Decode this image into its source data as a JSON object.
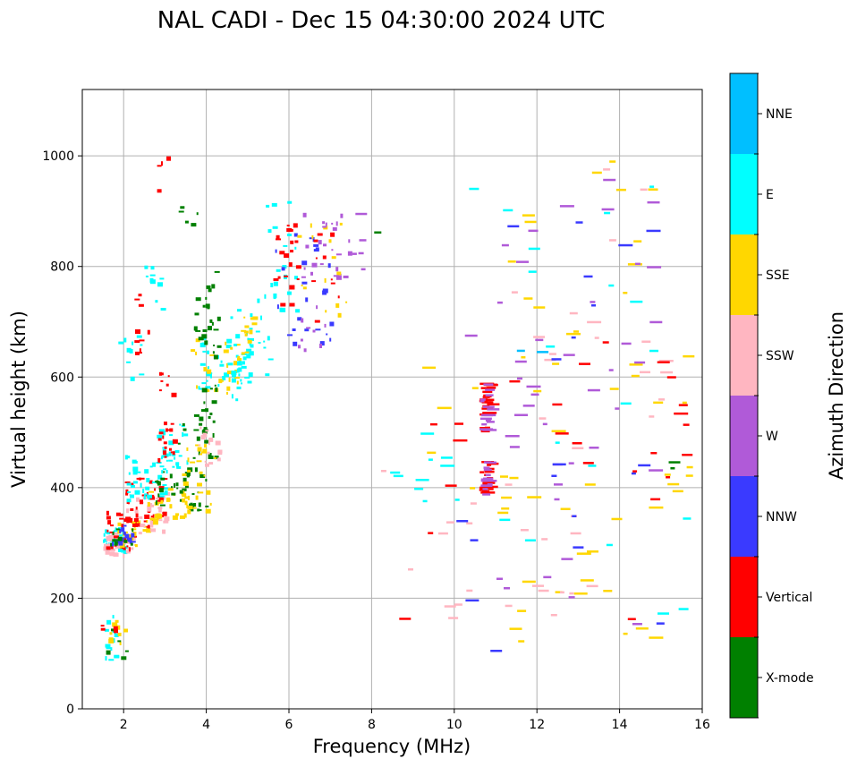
{
  "chart_data": {
    "type": "scatter",
    "title": "NAL CADI - Dec 15 04:30:00 2024 UTC",
    "xlabel": "Frequency (MHz)",
    "ylabel": "Virtual height (km)",
    "xlim": [
      1,
      16
    ],
    "ylim": [
      0,
      1120
    ],
    "xticks": [
      2,
      4,
      6,
      8,
      10,
      12,
      14,
      16
    ],
    "yticks": [
      0,
      200,
      400,
      600,
      800,
      1000
    ],
    "grid": true,
    "colorbar": {
      "label": "Azimuth Direction",
      "categories": [
        {
          "name": "X-mode",
          "color": "#008000"
        },
        {
          "name": "Vertical",
          "color": "#ff0000"
        },
        {
          "name": "NNW",
          "color": "#3a3aff"
        },
        {
          "name": "W",
          "color": "#b05ad8"
        },
        {
          "name": "SSW",
          "color": "#ffb6c1"
        },
        {
          "name": "SSE",
          "color": "#ffd700"
        },
        {
          "name": "E",
          "color": "#00ffff"
        },
        {
          "name": "NNE",
          "color": "#00bfff"
        }
      ]
    },
    "clusters": [
      {
        "category": "E",
        "f": [
          1.5,
          2.0
        ],
        "h": [
          285,
          330
        ],
        "n": 40
      },
      {
        "category": "SSW",
        "f": [
          1.5,
          2.2
        ],
        "h": [
          280,
          320
        ],
        "n": 30
      },
      {
        "category": "Vertical",
        "f": [
          1.5,
          2.4
        ],
        "h": [
          290,
          360
        ],
        "n": 30
      },
      {
        "category": "SSE",
        "f": [
          1.8,
          2.6
        ],
        "h": [
          295,
          345
        ],
        "n": 25
      },
      {
        "category": "NNW",
        "f": [
          1.6,
          2.2
        ],
        "h": [
          300,
          340
        ],
        "n": 15
      },
      {
        "category": "X-mode",
        "f": [
          1.6,
          2.2
        ],
        "h": [
          295,
          340
        ],
        "n": 10
      },
      {
        "category": "Vertical",
        "f": [
          2.0,
          3.0
        ],
        "h": [
          330,
          420
        ],
        "n": 45
      },
      {
        "category": "SSW",
        "f": [
          2.0,
          3.0
        ],
        "h": [
          320,
          400
        ],
        "n": 30
      },
      {
        "category": "E",
        "f": [
          2.0,
          3.0
        ],
        "h": [
          380,
          460
        ],
        "n": 35
      },
      {
        "category": "SSE",
        "f": [
          2.5,
          3.5
        ],
        "h": [
          340,
          400
        ],
        "n": 25
      },
      {
        "category": "X-mode",
        "f": [
          2.7,
          4.0
        ],
        "h": [
          350,
          430
        ],
        "n": 35
      },
      {
        "category": "E",
        "f": [
          2.8,
          3.6
        ],
        "h": [
          430,
          520
        ],
        "n": 30
      },
      {
        "category": "X-mode",
        "f": [
          3.3,
          4.2
        ],
        "h": [
          420,
          560
        ],
        "n": 30
      },
      {
        "category": "SSE",
        "f": [
          3.4,
          4.2
        ],
        "h": [
          360,
          480
        ],
        "n": 30
      },
      {
        "category": "SSW",
        "f": [
          3.8,
          4.3
        ],
        "h": [
          440,
          520
        ],
        "n": 15
      },
      {
        "category": "Vertical",
        "f": [
          2.8,
          3.2
        ],
        "h": [
          450,
          620
        ],
        "n": 25
      },
      {
        "category": "E",
        "f": [
          3.8,
          5.0
        ],
        "h": [
          560,
          680
        ],
        "n": 40
      },
      {
        "category": "SSE",
        "f": [
          3.6,
          4.8
        ],
        "h": [
          570,
          680
        ],
        "n": 25
      },
      {
        "category": "X-mode",
        "f": [
          3.7,
          4.3
        ],
        "h": [
          580,
          800
        ],
        "n": 30
      },
      {
        "category": "E",
        "f": [
          4.5,
          5.6
        ],
        "h": [
          600,
          750
        ],
        "n": 30
      },
      {
        "category": "SSE",
        "f": [
          4.6,
          5.2
        ],
        "h": [
          620,
          720
        ],
        "n": 15
      },
      {
        "category": "E",
        "f": [
          5.4,
          6.2
        ],
        "h": [
          720,
          920
        ],
        "n": 20
      },
      {
        "category": "Vertical",
        "f": [
          5.6,
          6.2
        ],
        "h": [
          720,
          880
        ],
        "n": 20
      },
      {
        "category": "NNW",
        "f": [
          5.6,
          7.0
        ],
        "h": [
          660,
          870
        ],
        "n": 25
      },
      {
        "category": "W",
        "f": [
          6.2,
          7.4
        ],
        "h": [
          640,
          900
        ],
        "n": 25
      },
      {
        "category": "SSE",
        "f": [
          6.2,
          7.4
        ],
        "h": [
          700,
          880
        ],
        "n": 15
      },
      {
        "category": "Vertical",
        "f": [
          6.4,
          7.2
        ],
        "h": [
          700,
          880
        ],
        "n": 10
      },
      {
        "category": "W",
        "f": [
          6.6,
          7.8
        ],
        "h": [
          780,
          930
        ],
        "n": 10
      },
      {
        "category": "E",
        "f": [
          1.8,
          2.4
        ],
        "h": [
          600,
          690
        ],
        "n": 10
      },
      {
        "category": "Vertical",
        "f": [
          2.2,
          2.6
        ],
        "h": [
          640,
          760
        ],
        "n": 10
      },
      {
        "category": "E",
        "f": [
          2.5,
          2.9
        ],
        "h": [
          720,
          810
        ],
        "n": 10
      },
      {
        "category": "X-mode",
        "f": [
          3.2,
          4.0
        ],
        "h": [
          850,
          930
        ],
        "n": 5
      },
      {
        "category": "Vertical",
        "f": [
          2.8,
          3.2
        ],
        "h": [
          920,
          1000
        ],
        "n": 4
      },
      {
        "category": "E",
        "f": [
          1.5,
          1.8
        ],
        "h": [
          90,
          170
        ],
        "n": 15
      },
      {
        "category": "SSE",
        "f": [
          1.5,
          2.0
        ],
        "h": [
          120,
          170
        ],
        "n": 10
      },
      {
        "category": "X-mode",
        "f": [
          1.5,
          2.4
        ],
        "h": [
          90,
          170
        ],
        "n": 6
      },
      {
        "category": "Vertical",
        "f": [
          1.4,
          1.8
        ],
        "h": [
          130,
          170
        ],
        "n": 4
      },
      {
        "category": "Vertical",
        "f": [
          10.6,
          10.8
        ],
        "h": [
          500,
          590
        ],
        "n": 25
      },
      {
        "category": "W",
        "f": [
          10.6,
          10.8
        ],
        "h": [
          500,
          590
        ],
        "n": 15
      },
      {
        "category": "Vertical",
        "f": [
          10.6,
          10.8
        ],
        "h": [
          385,
          450
        ],
        "n": 20
      },
      {
        "category": "W",
        "f": [
          10.6,
          10.8
        ],
        "h": [
          385,
          450
        ],
        "n": 15
      },
      {
        "category": "Vertical",
        "f": [
          15.0,
          15.6
        ],
        "h": [
          420,
          700
        ],
        "n": 6
      },
      {
        "category": "SSE",
        "f": [
          15.0,
          16.0
        ],
        "h": [
          360,
          700
        ],
        "n": 8
      },
      {
        "category": "X-mode",
        "f": [
          15.0,
          15.6
        ],
        "h": [
          430,
          450
        ],
        "n": 2
      },
      {
        "category": "E",
        "f": [
          14.8,
          15.6
        ],
        "h": [
          90,
          440
        ],
        "n": 3
      },
      {
        "category": "SSE",
        "f": [
          11.0,
          15.0
        ],
        "h": [
          100,
          1000
        ],
        "n": 45
      },
      {
        "category": "W",
        "f": [
          11.0,
          15.0
        ],
        "h": [
          150,
          960
        ],
        "n": 40
      },
      {
        "category": "SSW",
        "f": [
          11.0,
          15.0
        ],
        "h": [
          120,
          1020
        ],
        "n": 30
      },
      {
        "category": "E",
        "f": [
          11.0,
          15.0
        ],
        "h": [
          160,
          960
        ],
        "n": 15
      },
      {
        "category": "NNW",
        "f": [
          11.0,
          15.0
        ],
        "h": [
          80,
          990
        ],
        "n": 15
      },
      {
        "category": "Vertical",
        "f": [
          11.0,
          15.0
        ],
        "h": [
          150,
          700
        ],
        "n": 12
      },
      {
        "category": "NNE",
        "f": [
          11.0,
          12.0
        ],
        "h": [
          640,
          650
        ],
        "n": 2
      },
      {
        "category": "E",
        "f": [
          8.4,
          10.4
        ],
        "h": [
          360,
          500
        ],
        "n": 10
      },
      {
        "category": "SSW",
        "f": [
          8.0,
          10.4
        ],
        "h": [
          120,
          460
        ],
        "n": 10
      },
      {
        "category": "SSE",
        "f": [
          8.8,
          10.6
        ],
        "h": [
          360,
          650
        ],
        "n": 5
      },
      {
        "category": "Vertical",
        "f": [
          8.0,
          10.4
        ],
        "h": [
          160,
          560
        ],
        "n": 6
      },
      {
        "category": "NNW",
        "f": [
          10.0,
          11.2
        ],
        "h": [
          80,
          400
        ],
        "n": 4
      },
      {
        "category": "W",
        "f": [
          10.0,
          10.4
        ],
        "h": [
          670,
          680
        ],
        "n": 1
      },
      {
        "category": "E",
        "f": [
          10.0,
          10.4
        ],
        "h": [
          940,
          950
        ],
        "n": 1
      },
      {
        "category": "X-mode",
        "f": [
          8.0,
          8.4
        ],
        "h": [
          860,
          870
        ],
        "n": 1
      },
      {
        "category": "W",
        "f": [
          7.4,
          8.0
        ],
        "h": [
          800,
          860
        ],
        "n": 4
      }
    ]
  }
}
